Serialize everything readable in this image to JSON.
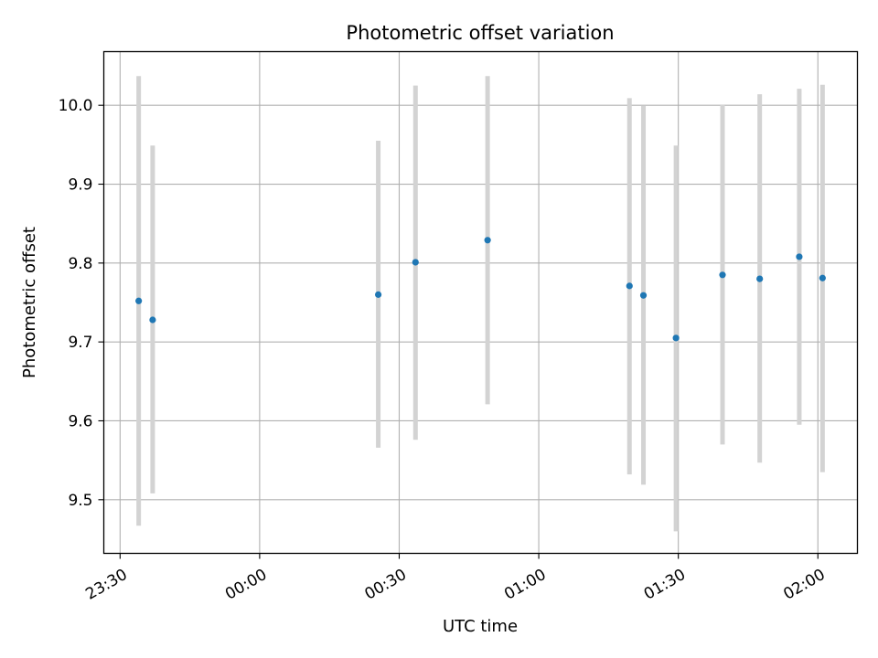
{
  "chart_data": {
    "type": "scatter",
    "title": "Photometric offset variation",
    "xlabel": "UTC time",
    "ylabel": "Photometric offset",
    "xlim": [
      "23:26:30",
      "02:08:30"
    ],
    "ylim": [
      9.432,
      10.068
    ],
    "xticks": [
      "23:30",
      "00:00",
      "00:30",
      "01:00",
      "01:30",
      "02:00"
    ],
    "yticks": [
      9.5,
      9.6,
      9.7,
      9.8,
      9.9,
      10.0
    ],
    "grid": true,
    "marker_color": "#1f77b4",
    "errorbar_color": "#d3d3d3",
    "points": [
      {
        "x": "23:34:00",
        "y": 9.752,
        "ylow": 9.467,
        "yhigh": 10.037
      },
      {
        "x": "23:37:00",
        "y": 9.728,
        "ylow": 9.508,
        "yhigh": 9.949
      },
      {
        "x": "00:25:30",
        "y": 9.76,
        "ylow": 9.566,
        "yhigh": 9.955
      },
      {
        "x": "00:33:30",
        "y": 9.801,
        "ylow": 9.576,
        "yhigh": 10.025
      },
      {
        "x": "00:49:00",
        "y": 9.829,
        "ylow": 9.621,
        "yhigh": 10.037
      },
      {
        "x": "01:19:30",
        "y": 9.771,
        "ylow": 9.532,
        "yhigh": 10.009
      },
      {
        "x": "01:22:30",
        "y": 9.759,
        "ylow": 9.519,
        "yhigh": 9.999
      },
      {
        "x": "01:29:30",
        "y": 9.705,
        "ylow": 9.46,
        "yhigh": 9.949
      },
      {
        "x": "01:39:30",
        "y": 9.785,
        "ylow": 9.57,
        "yhigh": 10.001
      },
      {
        "x": "01:47:30",
        "y": 9.78,
        "ylow": 9.547,
        "yhigh": 10.014
      },
      {
        "x": "01:56:00",
        "y": 9.808,
        "ylow": 9.595,
        "yhigh": 10.021
      },
      {
        "x": "02:01:00",
        "y": 9.781,
        "ylow": 9.535,
        "yhigh": 10.026
      }
    ]
  }
}
